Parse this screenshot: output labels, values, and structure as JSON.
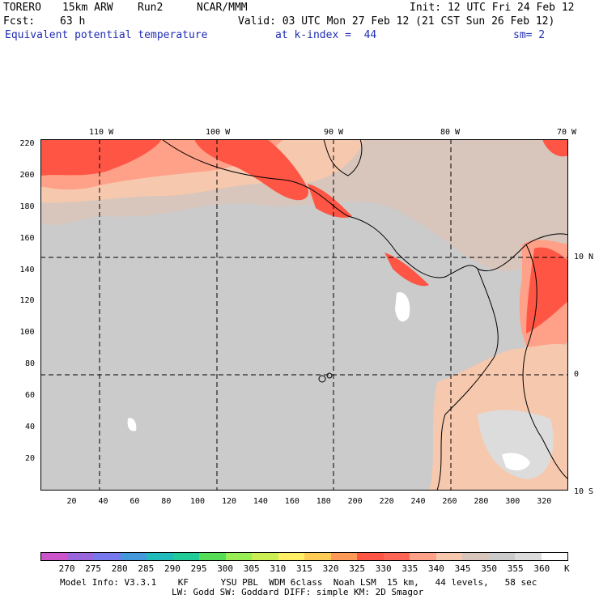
{
  "header": {
    "model": "TORERO",
    "resolution": "15km ARW",
    "run": "Run2",
    "org": "NCAR/MMM",
    "init": "Init: 12 UTC Fri 24 Feb 12",
    "fcst_label": "Fcst:",
    "fcst_hours": "63 h",
    "valid": "Valid: 03 UTC Mon 27 Feb 12 (21 CST Sun 26 Feb 12)"
  },
  "field": {
    "name": "Equivalent potential temperature",
    "level": "at k-index =  44",
    "smooth": "sm= 2"
  },
  "map": {
    "top_lon_labels": [
      "110 W",
      "100 W",
      "90 W",
      "80 W",
      "70 W"
    ],
    "right_lat_labels": [
      "10 N",
      "0",
      "10 S"
    ],
    "x_ticks": [
      "20",
      "40",
      "60",
      "80",
      "100",
      "120",
      "140",
      "160",
      "180",
      "200",
      "220",
      "240",
      "260",
      "280",
      "300",
      "320"
    ],
    "y_ticks": [
      "220",
      "200",
      "180",
      "160",
      "140",
      "120",
      "100",
      "80",
      "60",
      "40",
      "20"
    ]
  },
  "colorbar": {
    "unit": "K",
    "labels": [
      "270",
      "275",
      "280",
      "285",
      "290",
      "295",
      "300",
      "305",
      "310",
      "315",
      "320",
      "325",
      "330",
      "335",
      "340",
      "345",
      "350",
      "355",
      "360"
    ],
    "colors": [
      "#cc55cc",
      "#9966dd",
      "#7777ee",
      "#4499dd",
      "#22bbbb",
      "#22cc99",
      "#55dd55",
      "#99ee55",
      "#ccee55",
      "#ffee66",
      "#ffcc55",
      "#ff9955",
      "#ff5544",
      "#ff6655",
      "#ffa088",
      "#f6c8ae",
      "#d8c6bc",
      "#cbcbcb",
      "#dcdcdc",
      "#ffffff"
    ]
  },
  "footer": {
    "line1": "Model Info: V3.3.1    KF      YSU PBL  WDM 6class  Noah LSM  15 km,   44 levels,   58 sec",
    "line2": "LW: Godd SW: Goddard DIFF: simple KM: 2D Smagor"
  }
}
